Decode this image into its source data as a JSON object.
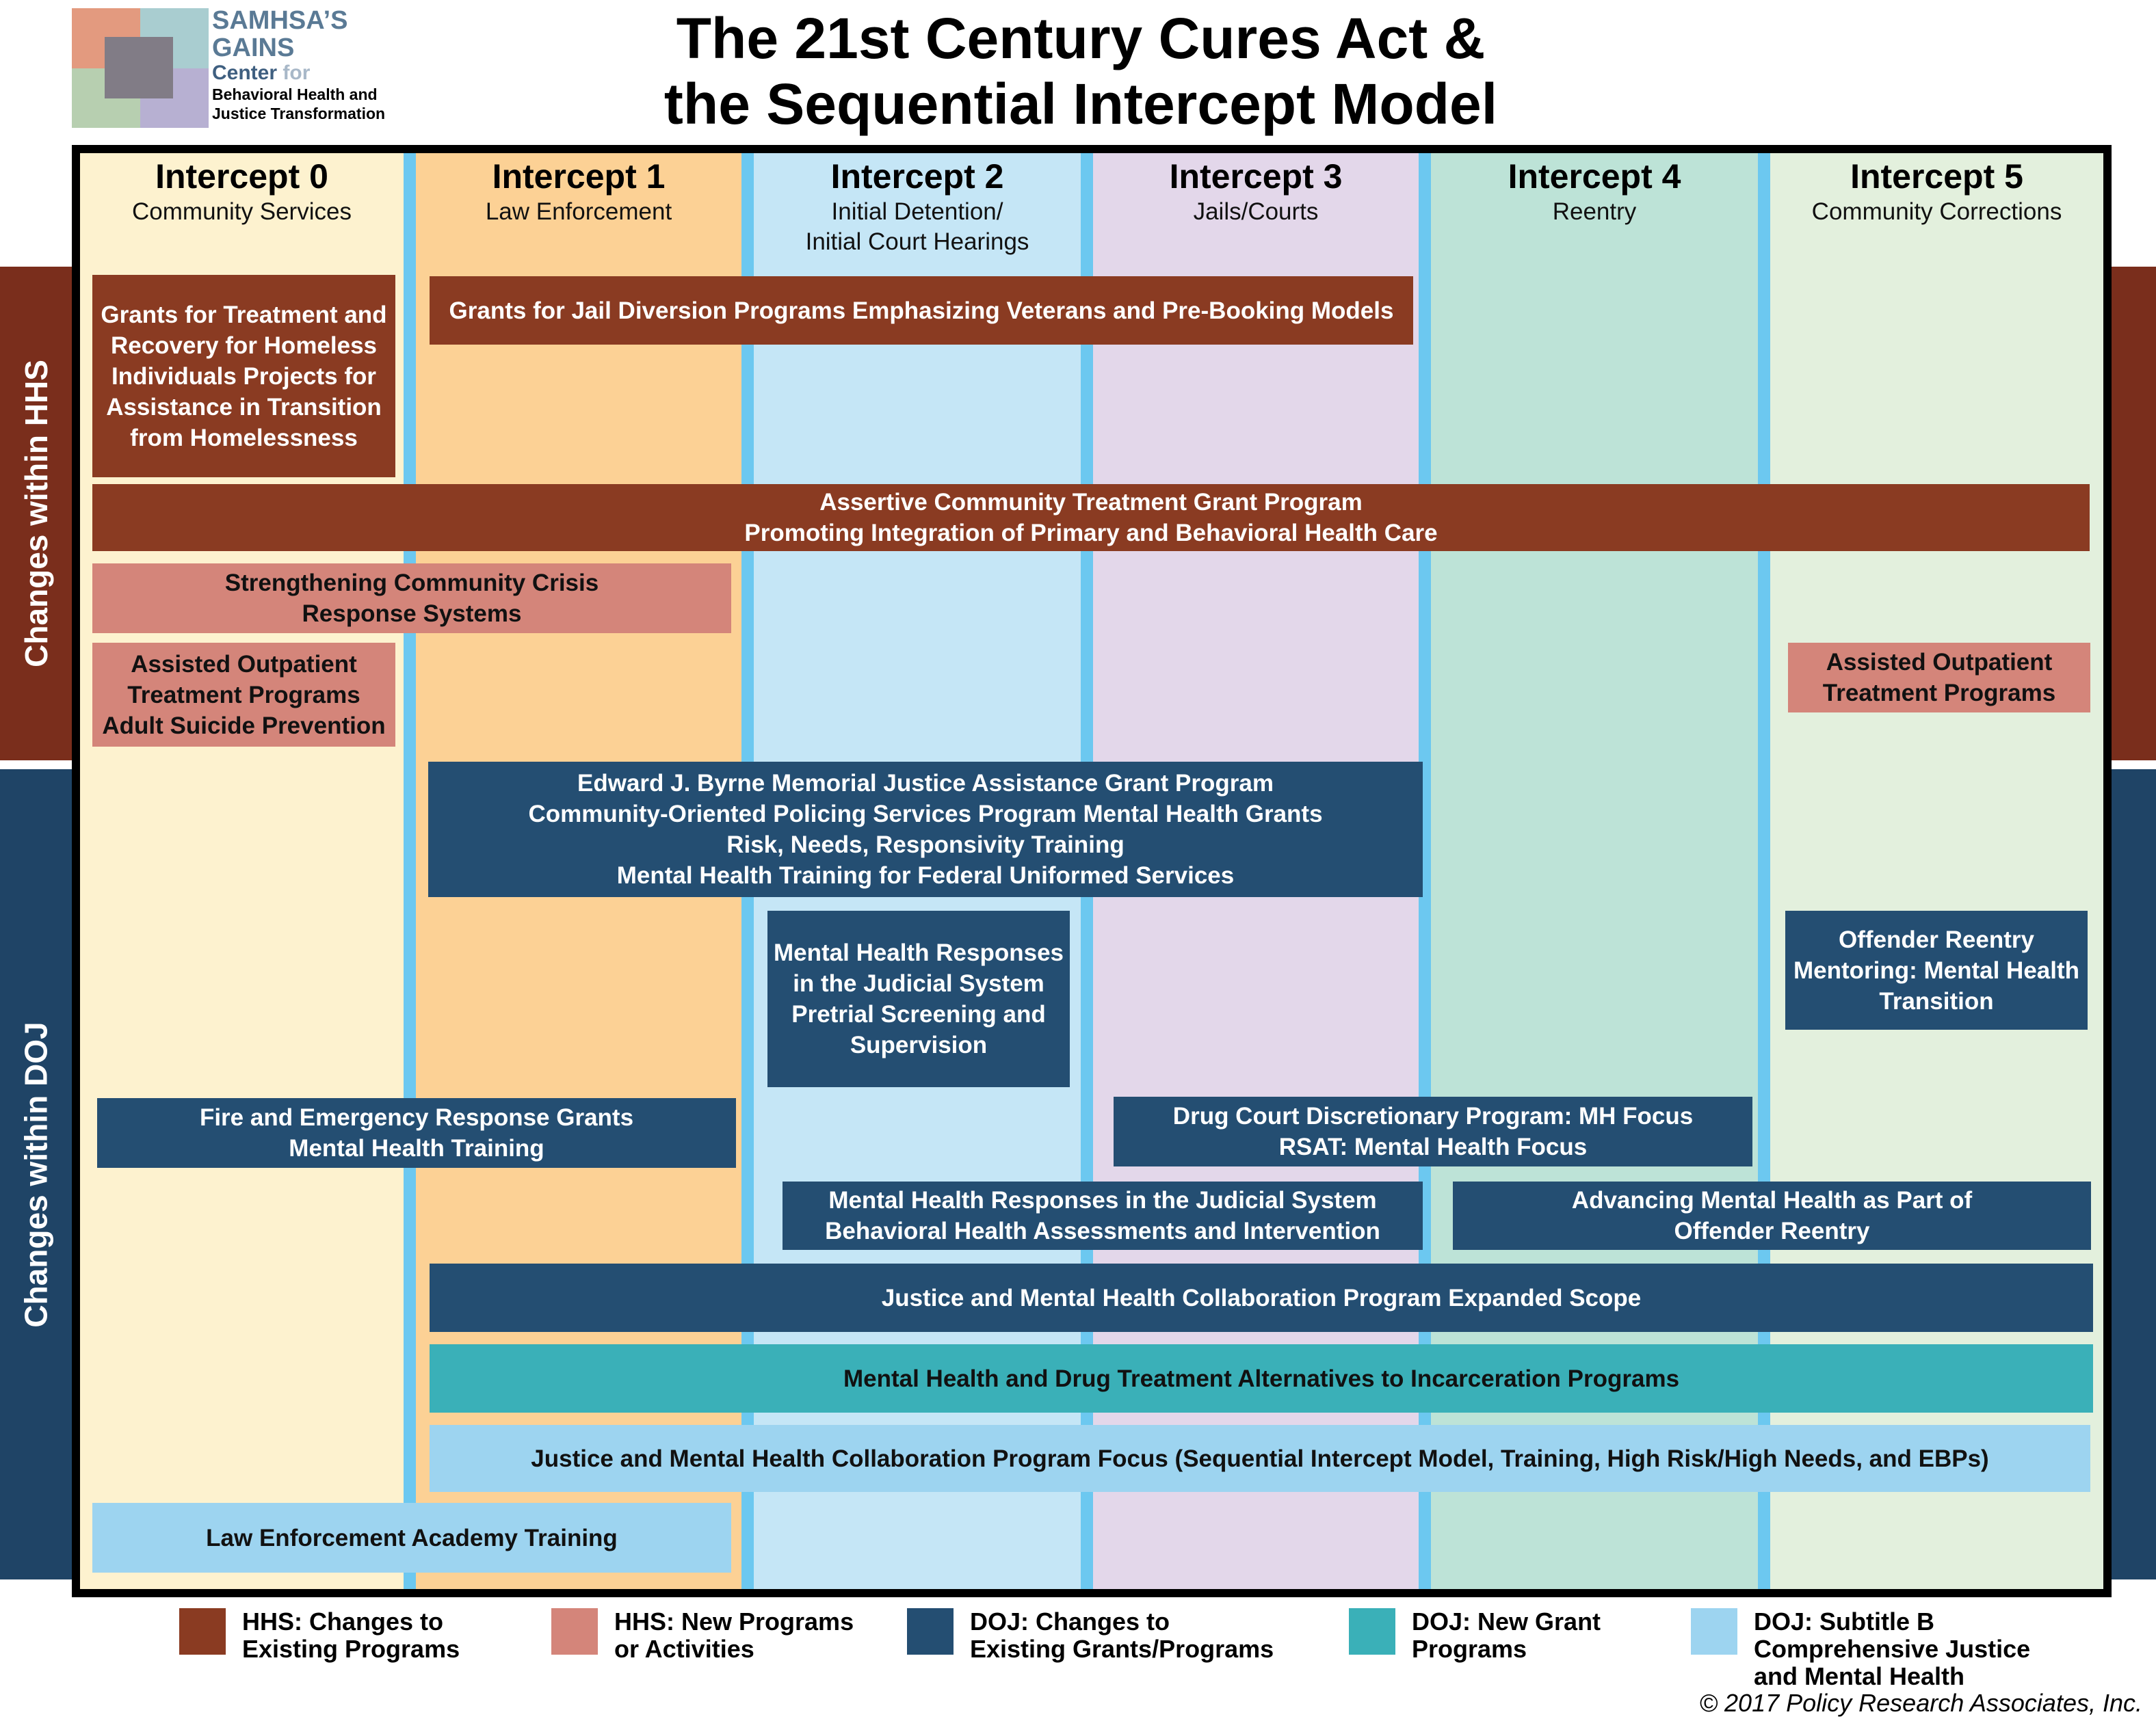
{
  "header": {
    "title_line1": "The 21st Century Cures Act &",
    "title_line2": "the Sequential Intercept Model",
    "logo": {
      "line1": "SAMHSA’S",
      "line2": "GAINS",
      "line3_a": "Center",
      "line3_b": "for",
      "line4": "Behavioral Health and",
      "line5": "Justice Transformation"
    }
  },
  "columns": [
    {
      "heading": "Intercept 0",
      "sub": "Community Services",
      "color": "#fdf2cf"
    },
    {
      "heading": "Intercept 1",
      "sub": "Law Enforcement",
      "color": "#fcd195"
    },
    {
      "heading": "Intercept 2",
      "sub": "Initial Detention/\nInitial Court Hearings",
      "color": "#c5e6f6"
    },
    {
      "heading": "Intercept 3",
      "sub": "Jails/Courts",
      "color": "#e3d7ea"
    },
    {
      "heading": "Intercept 4",
      "sub": "Reentry",
      "color": "#bde3d7"
    },
    {
      "heading": "Intercept 5",
      "sub": "Community Corrections",
      "color": "#e3f0dd"
    }
  ],
  "side_labels": {
    "hhs": "Changes within HHS",
    "doj": "Changes within DOJ",
    "hhs_color": "#7a2e1c",
    "doj_color": "#1f4466"
  },
  "programs": {
    "grants_homeless": "Grants for Treatment and Recovery for Homeless Individuals Projects for Assistance in Transition from Homelessness",
    "jail_diversion": "Grants for Jail Diversion Programs Emphasizing Veterans and Pre-Booking Models",
    "act": "Assertive Community Treatment Grant Program\nPromoting Integration of Primary and Behavioral Health Care",
    "crisis": "Strengthening Community Crisis\nResponse Systems",
    "aot_left": "Assisted Outpatient\nTreatment Programs\nAdult Suicide Prevention",
    "aot_right": "Assisted Outpatient\nTreatment Programs",
    "byrne": "Edward J. Byrne Memorial Justice Assistance Grant Program\nCommunity-Oriented Policing Services Program Mental Health Grants\nRisk, Needs, Responsivity Training\nMental Health Training for Federal Uniformed Services",
    "mh_pretrial": "Mental Health Responses in the Judicial System Pretrial Screening and Supervision",
    "offender_mentoring": "Offender Reentry Mentoring: Mental Health Transition",
    "fire": "Fire and Emergency Response Grants\nMental Health Training",
    "drug_court": "Drug Court Discretionary Program: MH Focus\nRSAT: Mental Health Focus",
    "mh_assess": "Mental Health Responses in the Judicial System\nBehavioral Health Assessments and Intervention",
    "advancing": "Advancing Mental Health as Part of\nOffender Reentry",
    "jmhcp_scope": "Justice and Mental Health Collaboration Program Expanded Scope",
    "alternatives": "Mental Health and Drug Treatment Alternatives to Incarceration Programs",
    "jmhcp_focus": "Justice and Mental Health Collaboration Program Focus (Sequential Intercept Model, Training, High Risk/High Needs, and EBPs)",
    "academy": "Law Enforcement Academy Training"
  },
  "legend": [
    {
      "label": "HHS: Changes to\nExisting Programs",
      "color": "#8a3b22"
    },
    {
      "label": "HHS: New Programs\nor Activities",
      "color": "#d4857a"
    },
    {
      "label": "DOJ: Changes to\nExisting Grants/Programs",
      "color": "#244e72"
    },
    {
      "label": "DOJ: New Grant\nPrograms",
      "color": "#3ab0b8"
    },
    {
      "label": "DOJ: Subtitle B\nComprehensive Justice\nand Mental Health",
      "color": "#9dd4f0"
    }
  ],
  "copyright": "© 2017 Policy Research Associates, Inc."
}
